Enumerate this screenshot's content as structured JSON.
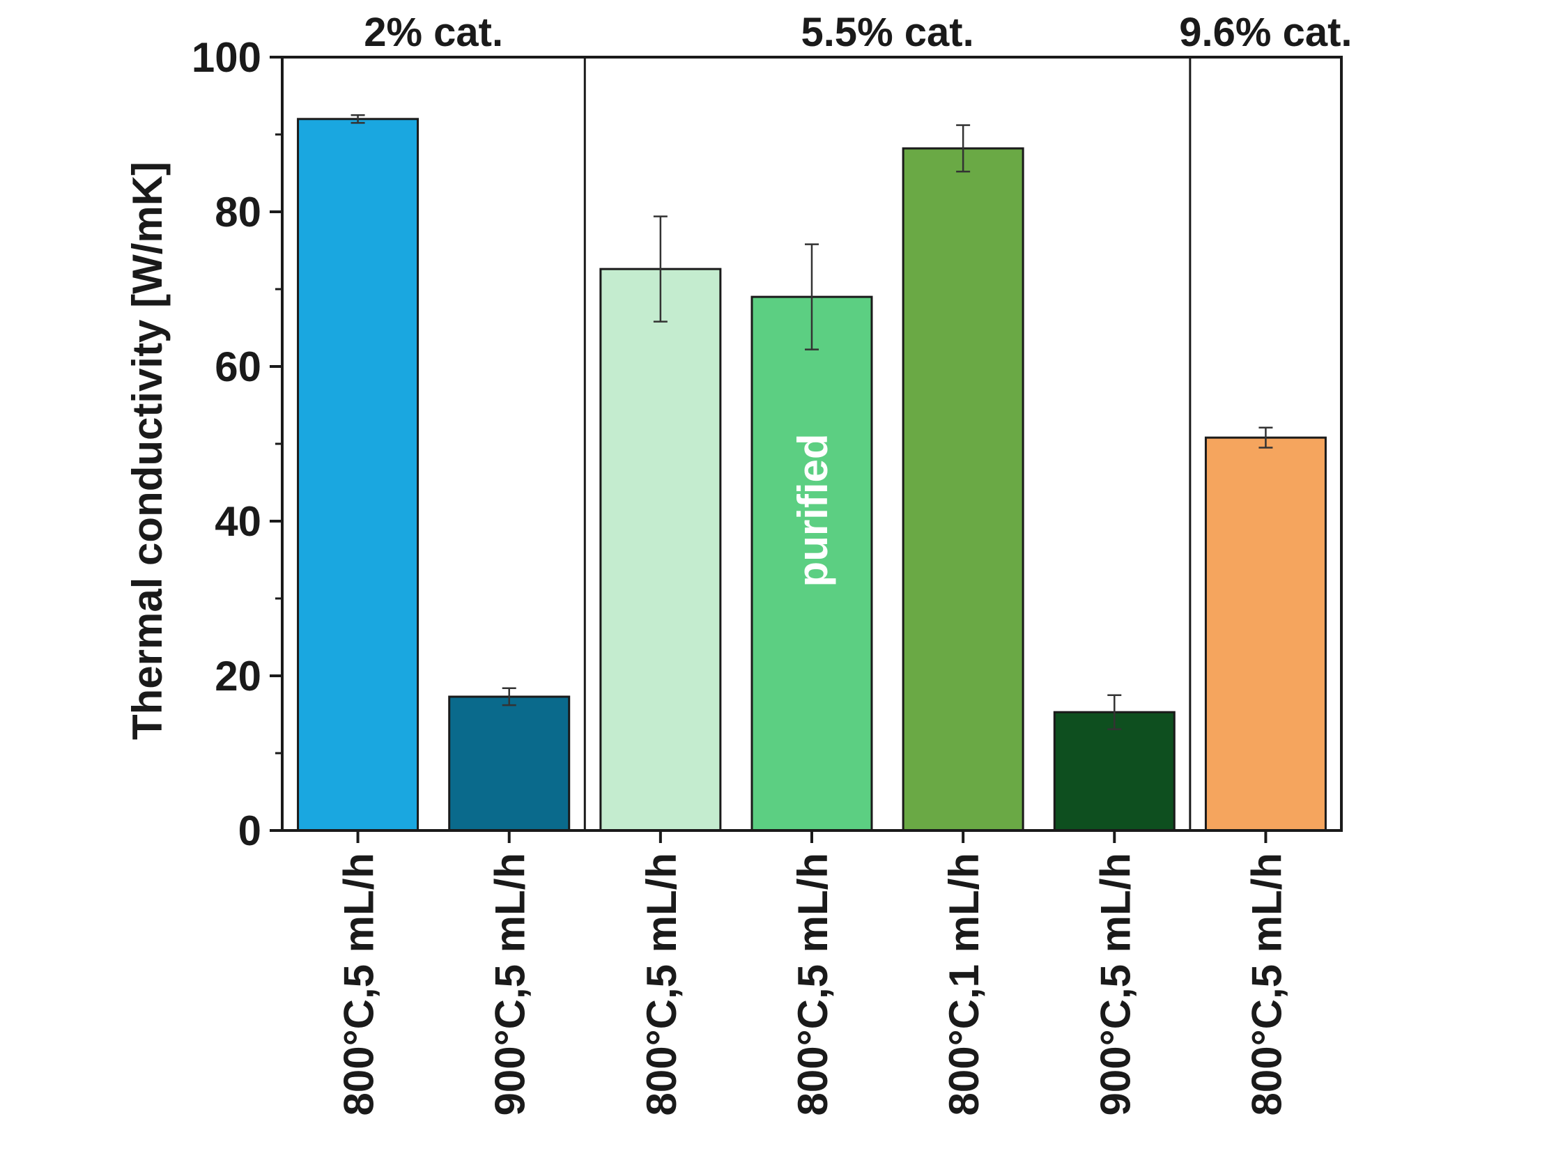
{
  "chart_data": {
    "type": "bar",
    "title": "",
    "xlabel": "",
    "ylabel": "Thermal conductivity [W/mK]",
    "ylim": [
      0,
      100
    ],
    "yticks": [
      0,
      20,
      40,
      60,
      80,
      100
    ],
    "grid": false,
    "categories": [
      "800°C,5 mL/h",
      "900°C,5 mL/h",
      "800°C,5 mL/h",
      "800°C,5 mL/h",
      "800°C,1 mL/h",
      "900°C,5 mL/h",
      "800°C,5 mL/h"
    ],
    "values": [
      92,
      17.3,
      72.6,
      69.0,
      88.2,
      15.3,
      50.8
    ],
    "errors": [
      0.5,
      1.1,
      6.8,
      6.8,
      3.0,
      2.2,
      1.3
    ],
    "colors": [
      "#1aa7e0",
      "#0a6a8c",
      "#c4eccf",
      "#5ccf82",
      "#6aa945",
      "#0e4f1f",
      "#f5a55e"
    ],
    "bar_annotations": [
      "",
      "",
      "",
      "purified",
      "",
      "",
      ""
    ],
    "groups": [
      {
        "label": "2% cat.",
        "start": 0,
        "end": 1
      },
      {
        "label": "5.5% cat.",
        "start": 2,
        "end": 5
      },
      {
        "label": "9.6% cat.",
        "start": 6,
        "end": 6
      }
    ]
  }
}
